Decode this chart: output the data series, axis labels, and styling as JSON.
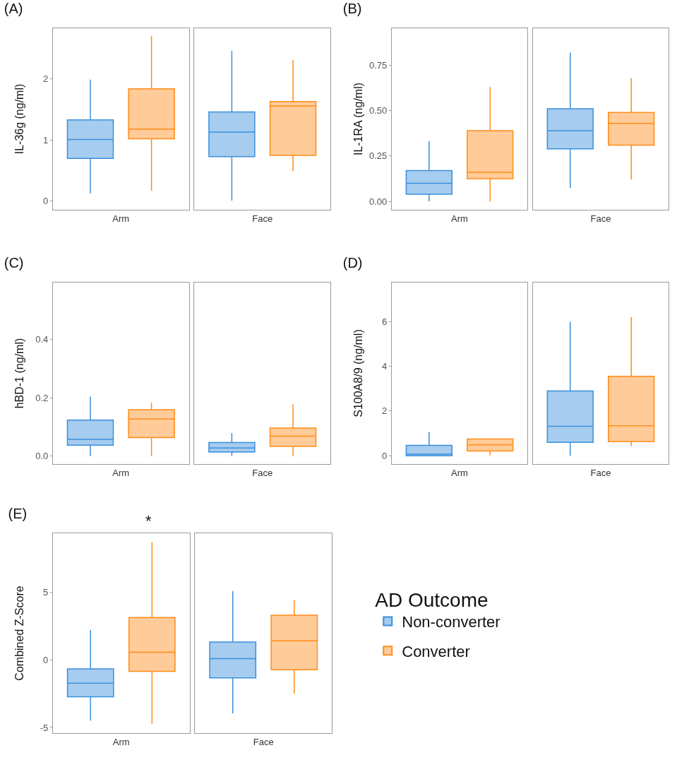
{
  "chart_data": [
    {
      "type": "box",
      "title": "(A)",
      "ylabel": "IL-36g (ng/ml)",
      "categories": [
        "Arm",
        "Face"
      ],
      "ylim": [
        -0.14,
        2.83
      ],
      "yticks": [
        0,
        1,
        2
      ],
      "grid": false,
      "series": [
        {
          "color": "#3a8fdc",
          "boxes": [
            {
              "low": 0.13,
              "q1": 0.7,
              "median": 1.01,
              "q3": 1.33,
              "high": 1.99
            },
            {
              "low": 0.01,
              "q1": 0.73,
              "median": 1.13,
              "q3": 1.46,
              "high": 2.46
            }
          ]
        },
        {
          "color": "#ff8c1a",
          "boxes": [
            {
              "low": 0.17,
              "q1": 1.02,
              "median": 1.18,
              "q3": 1.84,
              "high": 2.7
            },
            {
              "low": 0.49,
              "q1": 0.75,
              "median": 1.56,
              "q3": 1.63,
              "high": 2.31
            }
          ]
        }
      ]
    },
    {
      "type": "box",
      "title": "(B)",
      "ylabel": "IL-1RA (ng/ml)",
      "categories": [
        "Arm",
        "Face"
      ],
      "ylim": [
        -0.046,
        0.954
      ],
      "yticks": [
        {
          "value": 0,
          "label": "0.00"
        },
        {
          "value": 0.25,
          "label": "0.25"
        },
        {
          "value": 0.5,
          "label": "0.50"
        },
        {
          "value": 0.75,
          "label": "0.75"
        }
      ],
      "grid": false,
      "series": [
        {
          "color": "#3a8fdc",
          "boxes": [
            {
              "low": 0,
              "q1": 0.04,
              "median": 0.1,
              "q3": 0.17,
              "high": 0.33
            },
            {
              "low": 0.075,
              "q1": 0.29,
              "median": 0.39,
              "q3": 0.51,
              "high": 0.82
            }
          ]
        },
        {
          "color": "#ff8c1a",
          "boxes": [
            {
              "low": 0,
              "q1": 0.125,
              "median": 0.16,
              "q3": 0.39,
              "high": 0.63
            },
            {
              "low": 0.12,
              "q1": 0.31,
              "median": 0.43,
              "q3": 0.49,
              "high": 0.68
            }
          ]
        }
      ]
    },
    {
      "type": "box",
      "title": "(C)",
      "ylabel": "hBD-1 (ng/ml)",
      "categories": [
        "Arm",
        "Face"
      ],
      "ylim": [
        -0.028,
        0.596
      ],
      "yticks": [
        {
          "value": 0,
          "label": "0.0"
        },
        {
          "value": 0.2,
          "label": "0.2"
        },
        {
          "value": 0.4,
          "label": "0.4"
        }
      ],
      "grid": false,
      "series": [
        {
          "color": "#3a8fdc",
          "boxes": [
            {
              "low": 0,
              "q1": 0.037,
              "median": 0.057,
              "q3": 0.123,
              "high": 0.204
            },
            {
              "low": 0,
              "q1": 0.013,
              "median": 0.027,
              "q3": 0.046,
              "high": 0.079
            }
          ]
        },
        {
          "color": "#ff8c1a",
          "boxes": [
            {
              "low": 0,
              "q1": 0.063,
              "median": 0.127,
              "q3": 0.159,
              "high": 0.183
            },
            {
              "low": 0,
              "q1": 0.033,
              "median": 0.068,
              "q3": 0.096,
              "high": 0.177
            }
          ]
        }
      ]
    },
    {
      "type": "box",
      "title": "(D)",
      "ylabel": "S100A8/9 (ng/ml)",
      "categories": [
        "Arm",
        "Face"
      ],
      "ylim": [
        -0.37,
        7.74
      ],
      "yticks": [
        0,
        2,
        4,
        6
      ],
      "grid": false,
      "series": [
        {
          "color": "#3a8fdc",
          "boxes": [
            {
              "low": 0,
              "q1": 0,
              "median": 0.07,
              "q3": 0.47,
              "high": 1.06
            },
            {
              "low": 0,
              "q1": 0.6,
              "median": 1.32,
              "q3": 2.9,
              "high": 5.98
            }
          ]
        },
        {
          "color": "#ff8c1a",
          "boxes": [
            {
              "low": 0.02,
              "q1": 0.21,
              "median": 0.49,
              "q3": 0.75,
              "high": 0.75
            },
            {
              "low": 0.43,
              "q1": 0.63,
              "median": 1.34,
              "q3": 3.55,
              "high": 6.2
            }
          ]
        }
      ]
    },
    {
      "type": "box",
      "title": "(E)",
      "ylabel": "Combined Z-Score",
      "categories": [
        "Arm",
        "Face"
      ],
      "ylim": [
        -5.42,
        9.35
      ],
      "yticks": [
        -5,
        0,
        5
      ],
      "grid": false,
      "legend": "right",
      "legend_title": "AD Outcome",
      "annotations": [
        "*"
      ],
      "series": [
        {
          "name": "Non-converter",
          "color": "#3a8fdc",
          "boxes": [
            {
              "low": -4.5,
              "q1": -2.73,
              "median": -1.73,
              "q3": -0.67,
              "high": 2.2
            },
            {
              "low": -3.97,
              "q1": -1.34,
              "median": 0.09,
              "q3": 1.31,
              "high": 5.08
            }
          ]
        },
        {
          "name": "Converter",
          "color": "#ff8c1a",
          "boxes": [
            {
              "low": -4.71,
              "q1": -0.85,
              "median": 0.56,
              "q3": 3.12,
              "high": 8.68
            },
            {
              "low": -2.5,
              "q1": -0.74,
              "median": 1.41,
              "q3": 3.3,
              "high": 4.41
            }
          ]
        }
      ]
    }
  ]
}
